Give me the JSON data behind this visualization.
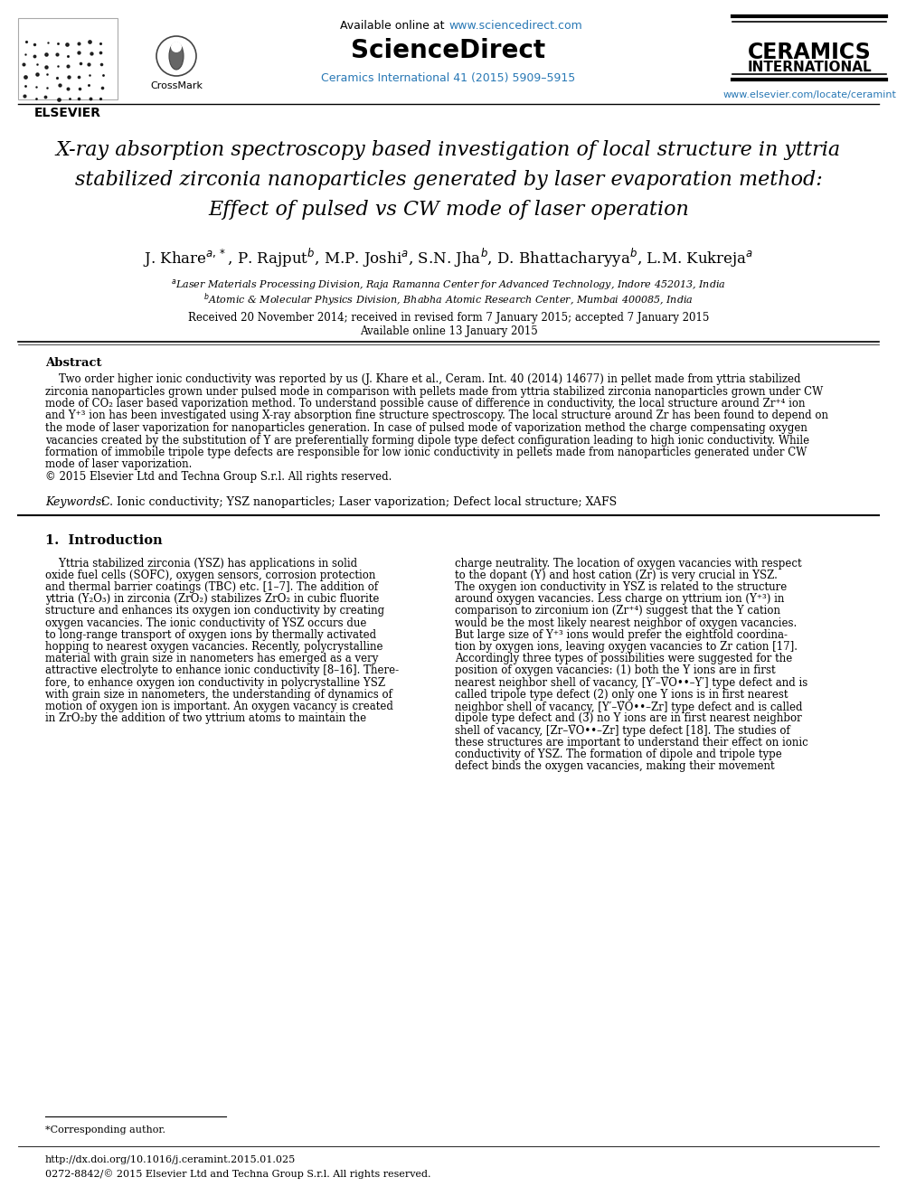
{
  "bg_color": "#ffffff",
  "url_color": "#2878b5",
  "text_color": "#000000",
  "header": {
    "available_online_text": "Available online at ",
    "sciencedirect_url": "www.sciencedirect.com",
    "sciencedirect_label": "ScienceDirect",
    "journal_cite": "Ceramics International 41 (2015) 5909–5915",
    "ceramics_line1": "CERAMICS",
    "ceramics_line2": "INTERNATIONAL",
    "elsevier_label": "ELSEVIER",
    "elsevier_url": "www.elsevier.com/locate/ceramint",
    "crossmark_label": "CrossMark"
  },
  "title_lines": [
    "X-ray absorption spectroscopy based investigation of local structure in yttria",
    "stabilized zirconia nanoparticles generated by laser evaporation method:",
    "Effect of pulsed vs CW mode of laser operation"
  ],
  "author_line": "J. Khare$^{a,*}$, P. Rajput$^{b}$, M.P. Joshi$^{a}$, S.N. Jha$^{b}$, D. Bhattacharyya$^{b}$, L.M. Kukreja$^{a}$",
  "affil_a": "$^{a}$Laser Materials Processing Division, Raja Ramanna Center for Advanced Technology, Indore 452013, India",
  "affil_b": "$^{b}$Atomic & Molecular Physics Division, Bhabha Atomic Research Center, Mumbai 400085, India",
  "received": "Received 20 November 2014; received in revised form 7 January 2015; accepted 7 January 2015",
  "available": "Available online 13 January 2015",
  "abstract_heading": "Abstract",
  "abstract_lines": [
    "    Two order higher ionic conductivity was reported by us (J. Khare et al., Ceram. Int. 40 (2014) 14677) in pellet made from yttria stabilized",
    "zirconia nanoparticles grown under pulsed mode in comparison with pellets made from yttria stabilized zirconia nanoparticles grown under CW",
    "mode of CO₂ laser based vaporization method. To understand possible cause of difference in conductivity, the local structure around Zr⁺⁴ ion",
    "and Y⁺³ ion has been investigated using X-ray absorption fine structure spectroscopy. The local structure around Zr has been found to depend on",
    "the mode of laser vaporization for nanoparticles generation. In case of pulsed mode of vaporization method the charge compensating oxygen",
    "vacancies created by the substitution of Y are preferentially forming dipole type defect configuration leading to high ionic conductivity. While",
    "formation of immobile tripole type defects are responsible for low ionic conductivity in pellets made from nanoparticles generated under CW",
    "mode of laser vaporization.",
    "© 2015 Elsevier Ltd and Techna Group S.r.l. All rights reserved."
  ],
  "keywords_label": "Keywords:",
  "keywords_text": " C. Ionic conductivity; YSZ nanoparticles; Laser vaporization; Defect local structure; XAFS",
  "intro_heading": "1.  Introduction",
  "col1_lines": [
    "    Yttria stabilized zirconia (YSZ) has applications in solid",
    "oxide fuel cells (SOFC), oxygen sensors, corrosion protection",
    "and thermal barrier coatings (TBC) etc. [1–7]. The addition of",
    "yttria (Y₂O₃) in zirconia (ZrO₂) stabilizes ZrO₂ in cubic fluorite",
    "structure and enhances its oxygen ion conductivity by creating",
    "oxygen vacancies. The ionic conductivity of YSZ occurs due",
    "to long-range transport of oxygen ions by thermally activated",
    "hopping to nearest oxygen vacancies. Recently, polycrystalline",
    "material with grain size in nanometers has emerged as a very",
    "attractive electrolyte to enhance ionic conductivity [8–16]. There-",
    "fore, to enhance oxygen ion conductivity in polycrystalline YSZ",
    "with grain size in nanometers, the understanding of dynamics of",
    "motion of oxygen ion is important. An oxygen vacancy is created",
    "in ZrO₂by the addition of two yttrium atoms to maintain the"
  ],
  "col2_lines": [
    "charge neutrality. The location of oxygen vacancies with respect",
    "to the dopant (Y) and host cation (Zr) is very crucial in YSZ.",
    "The oxygen ion conductivity in YSZ is related to the structure",
    "around oxygen vacancies. Less charge on yttrium ion (Y⁺³) in",
    "comparison to zirconium ion (Zr⁺⁴) suggest that the Y cation",
    "would be the most likely nearest neighbor of oxygen vacancies.",
    "But large size of Y⁺³ ions would prefer the eightfold coordina-",
    "tion by oxygen ions, leaving oxygen vacancies to Zr cation [17].",
    "Accordingly three types of possibilities were suggested for the",
    "position of oxygen vacancies: (1) both the Y ions are in first",
    "nearest neighbor shell of vacancy, [Y′–V̈O••–Y′] type defect and is",
    "called tripole type defect (2) only one Y ions is in first nearest",
    "neighbor shell of vacancy, [Y′–V̈O••–Zr] type defect and is called",
    "dipole type defect and (3) no Y ions are in first nearest neighbor",
    "shell of vacancy, [Zr–V̈O••–Zr] type defect [18]. The studies of",
    "these structures are important to understand their effect on ionic",
    "conductivity of YSZ. The formation of dipole and tripole type",
    "defect binds the oxygen vacancies, making their movement"
  ],
  "footer_corresponding": "*Corresponding author.",
  "footer_doi": "http://dx.doi.org/10.1016/j.ceramint.2015.01.025",
  "footer_issn": "0272-8842/© 2015 Elsevier Ltd and Techna Group S.r.l. All rights reserved."
}
